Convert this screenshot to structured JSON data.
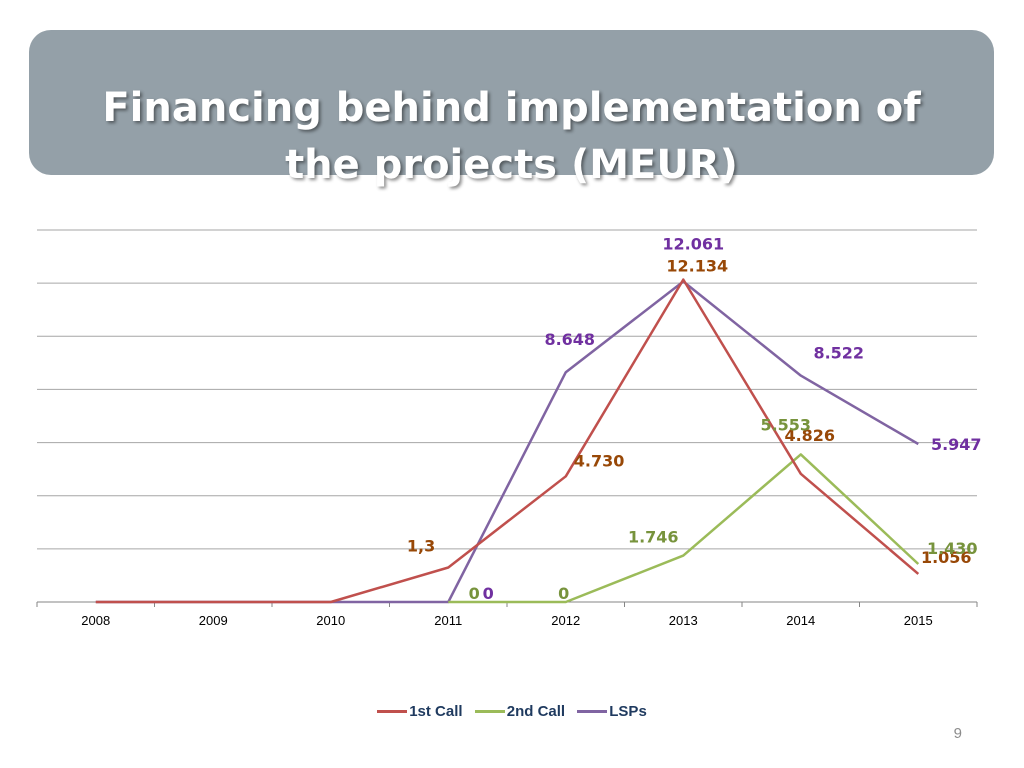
{
  "slide": {
    "title_line1": "Financing behind implementation of",
    "title_line2": "the projects (MEUR)",
    "page_number": "9"
  },
  "chart_data": {
    "type": "line",
    "categories": [
      "2008",
      "2009",
      "2010",
      "2011",
      "2012",
      "2013",
      "2014",
      "2015"
    ],
    "ylim": [
      0,
      14
    ],
    "grid": true,
    "legend_position": "bottom",
    "series": [
      {
        "name": "1st Call",
        "color": "#c0504d",
        "label_color": "#984807",
        "values": [
          0,
          0,
          0,
          1.3,
          4.73,
          12.134,
          4.826,
          1.056
        ],
        "labels": [
          null,
          null,
          null,
          "1,3",
          "4.730",
          "12.134",
          "4.826",
          "1.056"
        ]
      },
      {
        "name": "2nd Call",
        "color": "#9bbb59",
        "label_color": "#77933c",
        "values": [
          null,
          null,
          null,
          0,
          0,
          1.746,
          5.553,
          1.43
        ],
        "labels": [
          null,
          null,
          null,
          "0",
          "0",
          "1.746",
          "5.553",
          "1.430"
        ]
      },
      {
        "name": "LSPs",
        "color": "#8064a2",
        "label_color": "#7030a0",
        "values": [
          0,
          0,
          0,
          0,
          8.648,
          12.061,
          8.522,
          5.947
        ],
        "labels": [
          null,
          null,
          null,
          "0",
          "8.648",
          "12.061",
          "8.522",
          "5.947"
        ]
      }
    ]
  }
}
